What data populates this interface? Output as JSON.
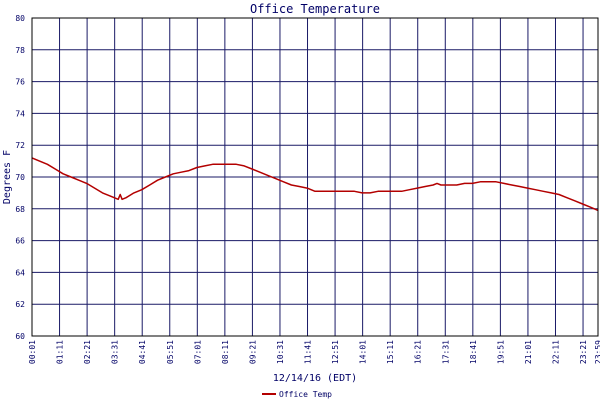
{
  "chart_data": {
    "type": "line",
    "title": "Office Temperature",
    "ylabel": "Degrees F",
    "xlabel": "12/14/16 (EDT)",
    "ylim": [
      60,
      80
    ],
    "yticks": [
      60,
      62,
      64,
      66,
      68,
      70,
      72,
      74,
      76,
      78,
      80
    ],
    "xticks": [
      "00:01",
      "01:11",
      "02:21",
      "03:31",
      "04:41",
      "05:51",
      "07:01",
      "08:11",
      "09:21",
      "10:31",
      "11:41",
      "12:51",
      "14:01",
      "15:11",
      "16:21",
      "17:31",
      "18:41",
      "19:51",
      "21:01",
      "22:11",
      "23:21",
      "23:59"
    ],
    "grid": true,
    "legend_position": "bottom-left",
    "colors": {
      "line": "#b30000",
      "grid": "#1a1a66",
      "axis_text": "#000066",
      "title": "#000066"
    },
    "series": [
      {
        "name": "Office Temp",
        "x": [
          "00:01",
          "00:20",
          "00:40",
          "01:00",
          "01:20",
          "01:40",
          "02:00",
          "02:20",
          "02:40",
          "03:00",
          "03:20",
          "03:40",
          "03:45",
          "03:50",
          "04:00",
          "04:20",
          "04:40",
          "05:00",
          "05:20",
          "05:40",
          "06:00",
          "06:20",
          "06:40",
          "07:00",
          "07:20",
          "07:40",
          "08:00",
          "08:20",
          "08:40",
          "09:00",
          "09:20",
          "09:40",
          "10:00",
          "10:20",
          "10:40",
          "11:00",
          "11:20",
          "11:40",
          "11:50",
          "12:00",
          "12:20",
          "12:40",
          "13:00",
          "13:20",
          "13:40",
          "14:00",
          "14:20",
          "14:40",
          "15:00",
          "15:20",
          "15:40",
          "16:00",
          "16:20",
          "16:40",
          "17:00",
          "17:10",
          "17:20",
          "17:40",
          "18:00",
          "18:20",
          "18:40",
          "19:00",
          "19:20",
          "19:40",
          "20:00",
          "20:20",
          "20:40",
          "21:00",
          "21:20",
          "21:40",
          "22:00",
          "22:20",
          "22:40",
          "23:00",
          "23:20",
          "23:40",
          "23:59"
        ],
        "values": [
          71.2,
          71.0,
          70.8,
          70.5,
          70.2,
          70.0,
          69.8,
          69.6,
          69.3,
          69.0,
          68.8,
          68.6,
          68.9,
          68.6,
          68.7,
          69.0,
          69.2,
          69.5,
          69.8,
          70.0,
          70.2,
          70.3,
          70.4,
          70.6,
          70.7,
          70.8,
          70.8,
          70.8,
          70.8,
          70.7,
          70.5,
          70.3,
          70.1,
          69.9,
          69.7,
          69.5,
          69.4,
          69.3,
          69.2,
          69.1,
          69.1,
          69.1,
          69.1,
          69.1,
          69.1,
          69.0,
          69.0,
          69.1,
          69.1,
          69.1,
          69.1,
          69.2,
          69.3,
          69.4,
          69.5,
          69.6,
          69.5,
          69.5,
          69.5,
          69.6,
          69.6,
          69.7,
          69.7,
          69.7,
          69.6,
          69.5,
          69.4,
          69.3,
          69.2,
          69.1,
          69.0,
          68.9,
          68.7,
          68.5,
          68.3,
          68.1,
          67.9
        ]
      }
    ]
  }
}
